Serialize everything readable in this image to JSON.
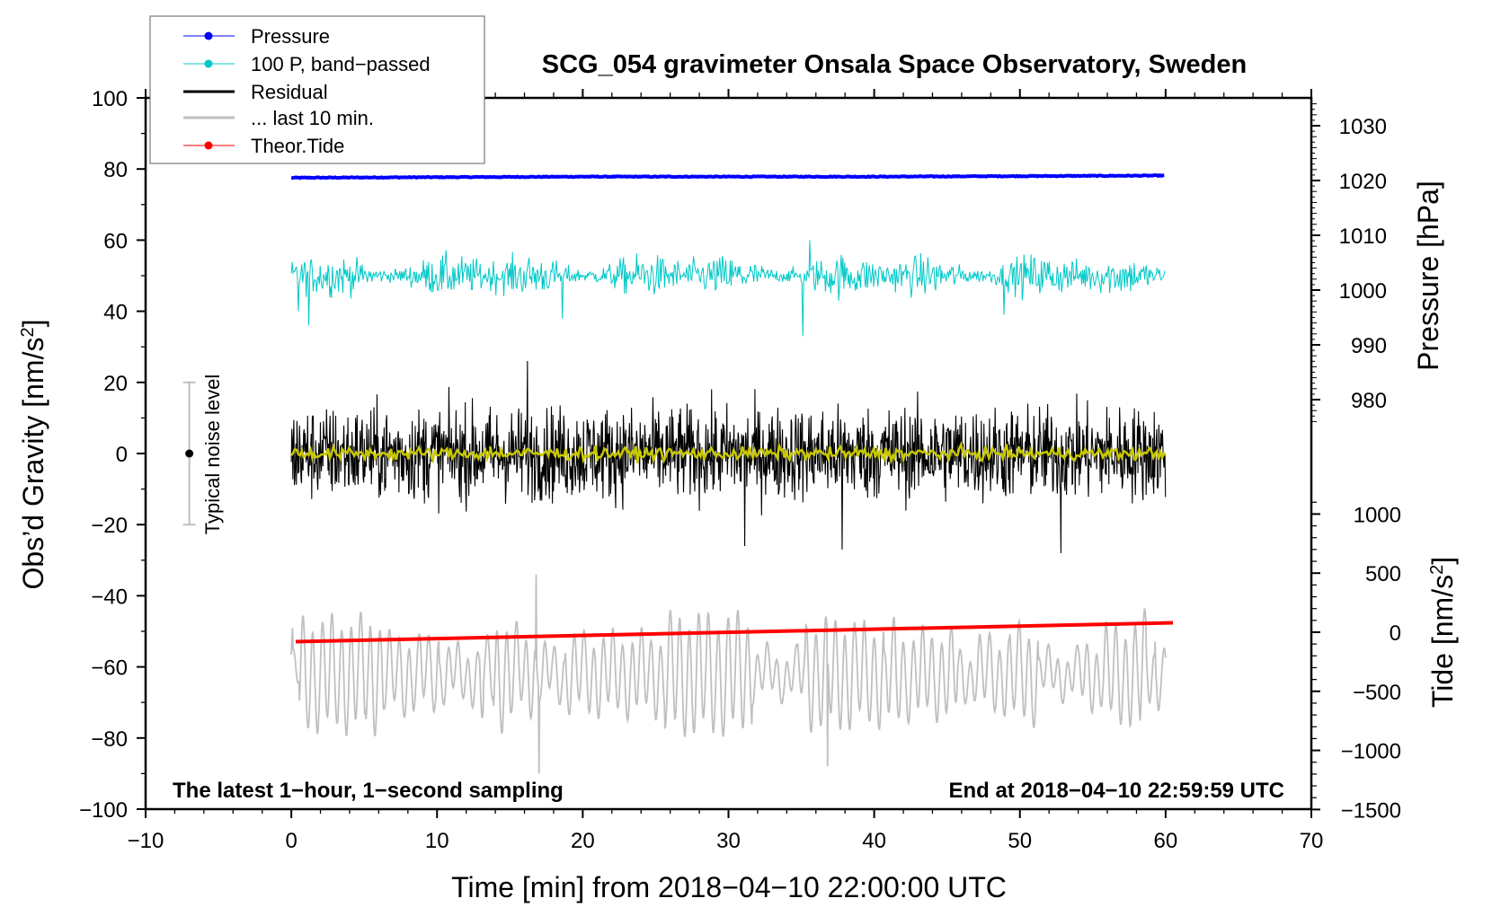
{
  "chart_data": {
    "type": "line",
    "title": "SCG_054 gravimeter Onsala Space Observatory, Sweden",
    "xlabel": "Time [min] from 2018−04−10 22:00:00 UTC",
    "ylabel": "Obs’d Gravity [nm/s",
    "ylabel_sup": "2",
    "ylabel_end": "]",
    "y2label": "Pressure [hPa]",
    "y3label": "Tide [nm/s",
    "y3label_sup": "2",
    "y3label_end": "]",
    "xlim": [
      -10,
      70
    ],
    "ylim": [
      -100,
      100
    ],
    "xticks": [
      "−10",
      "0",
      "10",
      "20",
      "30",
      "40",
      "50",
      "60",
      "70"
    ],
    "xtick_values": [
      -10,
      0,
      10,
      20,
      30,
      40,
      50,
      60,
      70
    ],
    "yticks": [
      "100",
      "80",
      "60",
      "40",
      "20",
      "0",
      "−20",
      "−40",
      "−60",
      "−80",
      "−100"
    ],
    "ytick_values": [
      100,
      80,
      60,
      40,
      20,
      0,
      -20,
      -40,
      -60,
      -80,
      -100
    ],
    "pressure_ticks": [
      "1030",
      "1020",
      "1010",
      "1000",
      "990",
      "980"
    ],
    "pressure_tick_values": [
      1030,
      1020,
      1010,
      1000,
      990,
      980
    ],
    "tide_ticks": [
      "1000",
      "500",
      "0",
      "−500",
      "−1000",
      "−1500"
    ],
    "tide_tick_values": [
      1000,
      500,
      0,
      -500,
      -1000,
      -1500
    ],
    "annotation_left": "The latest 1−hour, 1−second sampling",
    "annotation_right": "End at 2018−04−10 22:59:59 UTC",
    "noise_label": "Typical noise level",
    "noise_level": {
      "t": -7,
      "center": 0,
      "half_range": 20
    },
    "legend": {
      "placement": "top-left",
      "entries": [
        {
          "label": "Pressure",
          "color": "#0000ff",
          "marker": true
        },
        {
          "label": "100 P, band−passed",
          "color": "#00c8c8",
          "marker": true
        },
        {
          "label": "Residual",
          "color": "#000000",
          "marker": false
        },
        {
          "label": "... last 10 min.",
          "color": "#c0c0c0",
          "marker": false
        },
        {
          "label": "Theor.Tide",
          "color": "#ff0000",
          "marker": true
        }
      ]
    },
    "series": [
      {
        "name": "Pressure",
        "axis": "pressure_hPa",
        "color": "#0000ff",
        "t": [
          0,
          10,
          20,
          30,
          40,
          50,
          60
        ],
        "values": [
          1020.5,
          1020.6,
          1020.7,
          1020.7,
          1020.7,
          1020.8,
          1020.9
        ]
      },
      {
        "name": "100 P, band-passed",
        "axis": "gravity",
        "color": "#00c8c8",
        "t_range": [
          0,
          60
        ],
        "mean": 50,
        "amplitude": 4,
        "spikes": [
          [
            0.5,
            40
          ],
          [
            1.2,
            36
          ],
          [
            18.6,
            38
          ],
          [
            35.1,
            33
          ],
          [
            35.6,
            60
          ],
          [
            48.9,
            64
          ],
          [
            48.9,
            39
          ]
        ]
      },
      {
        "name": "Residual",
        "axis": "gravity",
        "color": "#000000",
        "t_range": [
          0,
          60
        ],
        "mean": 0,
        "amplitude": 13,
        "extremes": [
          [
            16.2,
            26
          ],
          [
            37.8,
            28
          ],
          [
            37.8,
            -27
          ],
          [
            52.8,
            28
          ],
          [
            52.8,
            -28
          ],
          [
            31.1,
            -26
          ]
        ]
      },
      {
        "name": "Residual smoothed",
        "axis": "gravity",
        "color": "#c8c800",
        "t_range": [
          0,
          60
        ],
        "mean": 0,
        "amplitude": 2
      },
      {
        "name": "... last 10 min.",
        "axis": "gravity",
        "color": "#c0c0c0",
        "t_range": [
          0,
          60
        ],
        "mean": -62,
        "amplitude": 13,
        "extremes": [
          [
            16.8,
            -34
          ],
          [
            17.0,
            -90
          ],
          [
            36.8,
            -88
          ]
        ]
      },
      {
        "name": "Theor.Tide",
        "axis": "tide_nm_s2",
        "color": "#ff0000",
        "t": [
          0.3,
          60.5
        ],
        "values": [
          -80,
          80
        ]
      }
    ]
  }
}
